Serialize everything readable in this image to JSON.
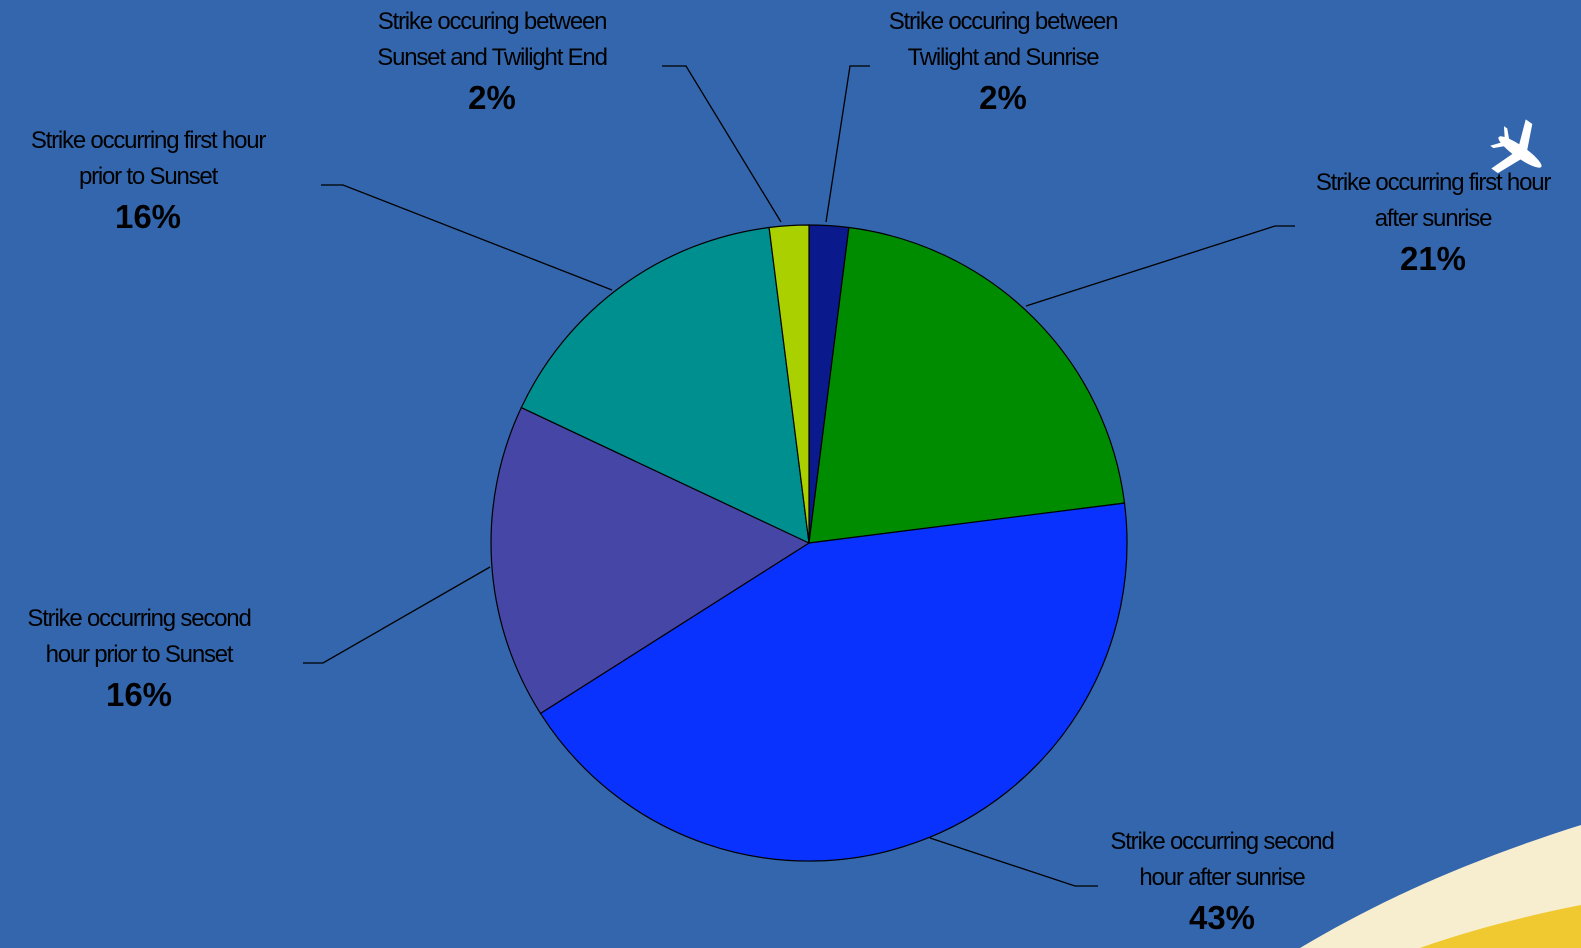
{
  "chart_data": {
    "type": "pie",
    "title": "",
    "slices": [
      {
        "label": "Strike occuring between Twilight and Sunrise",
        "line1": "Strike occuring between",
        "line2": "Twilight and Sunrise",
        "value": 2,
        "pct_label": "2%",
        "color": "#0a1a8c"
      },
      {
        "label": "Strike occurring first hour after sunrise",
        "line1": "Strike occurring first hour",
        "line2": "after sunrise",
        "value": 21,
        "pct_label": "21%",
        "color": "#008c00"
      },
      {
        "label": "Strike occurring second hour after sunrise",
        "line1": "Strike occurring second",
        "line2": "hour after sunrise",
        "value": 43,
        "pct_label": "43%",
        "color": "#0a32ff"
      },
      {
        "label": "Strike occurring second hour prior to Sunset",
        "line1": "Strike occurring second",
        "line2": "hour prior to Sunset",
        "value": 16,
        "pct_label": "16%",
        "color": "#4646a6"
      },
      {
        "label": "Strike occurring first hour prior to Sunset",
        "line1": "Strike occurring first hour",
        "line2": "prior to Sunset",
        "value": 16,
        "pct_label": "16%",
        "color": "#008f8f"
      },
      {
        "label": "Strike occuring between Sunset and Twilight End",
        "line1": "Strike occuring between",
        "line2": "Sunset and Twilight End",
        "value": 2,
        "pct_label": "2%",
        "color": "#aad000"
      }
    ]
  },
  "decor": {
    "background_color": "#3366ad",
    "plane_icon": "airplane-icon",
    "swoosh": "swoosh-decoration"
  }
}
